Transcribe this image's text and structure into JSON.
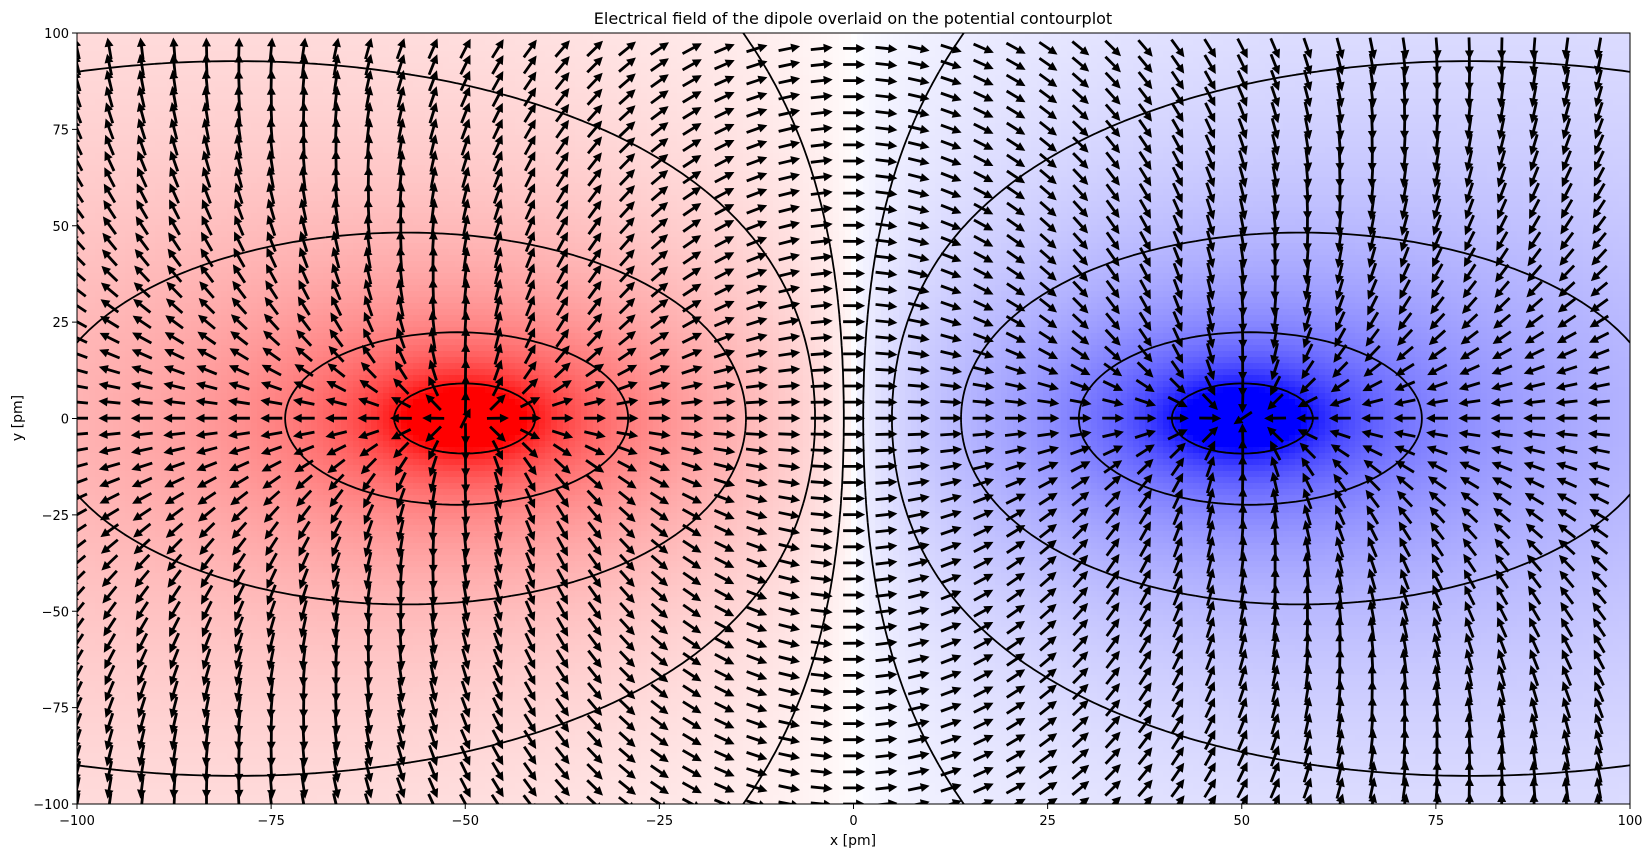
{
  "chart_data": {
    "type": "contour",
    "title": "Electrical field of the dipole overlaid on the potential contourplot",
    "xlabel": "x [pm]",
    "ylabel": "y [pm]",
    "xlim": [
      -100,
      100
    ],
    "ylim": [
      -100,
      100
    ],
    "xticks": [
      -100,
      -75,
      -50,
      -25,
      0,
      25,
      50,
      75,
      100
    ],
    "yticks": [
      -100,
      -75,
      -50,
      -25,
      0,
      25,
      50,
      75,
      100
    ],
    "xtick_labels": [
      "−100",
      "−75",
      "−50",
      "−25",
      "0",
      "25",
      "50",
      "75",
      "100"
    ],
    "ytick_labels": [
      "−100",
      "−75",
      "−50",
      "−25",
      "0",
      "25",
      "50",
      "75",
      "100"
    ],
    "grid": false,
    "charges": [
      {
        "sign": "positive",
        "x": -50,
        "y": 0,
        "color": "#ff0000"
      },
      {
        "sign": "negative",
        "x": 50,
        "y": 0,
        "color": "#0000ff"
      }
    ],
    "colormap": [
      "#0000ff",
      "#ffffff",
      "#ff0000"
    ],
    "contour_levels": [
      {
        "level": 1.0,
        "style": "solid"
      },
      {
        "level": 0.35,
        "style": "solid"
      },
      {
        "level": 0.12,
        "style": "solid"
      },
      {
        "level": 0.04,
        "style": "solid"
      },
      {
        "level": 0.01,
        "style": "solid"
      },
      {
        "level": -0.01,
        "style": "dashed"
      },
      {
        "level": -0.04,
        "style": "dashed"
      },
      {
        "level": -0.12,
        "style": "dashed"
      },
      {
        "level": -0.35,
        "style": "dashed"
      },
      {
        "level": -1.0,
        "style": "dashed"
      }
    ],
    "quiver": {
      "x_step": 4.17,
      "y_step": 4.17,
      "color": "#000000",
      "normalized": true
    }
  }
}
